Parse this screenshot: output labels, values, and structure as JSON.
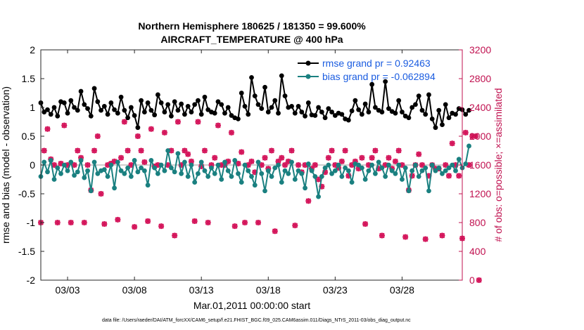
{
  "chart_data": {
    "type": "line",
    "title": "Northern Hemisphere 180625 / 181350 = 99.600%",
    "subtitle": "AIRCRAFT_TEMPERATURE @ 400 hPa",
    "xlabel": "Mar.01,2011 00:00:00 start",
    "ylabel_left": "rmse and bias (model - observation)",
    "ylabel_right": "# of obs: o=possible; ×=assimilated",
    "footer": "data file: /Users/raeder/DAI/ATM_forcXX/CAM6_setup/f.e21.FHIST_BGC.f09_025.CAM6assim.011/Diags_NTrS_2011-03/obs_diag_output.nc",
    "x_range": [
      1.0,
      32.5
    ],
    "ylim_left": [
      -2,
      2
    ],
    "ylim_right": [
      0,
      3200
    ],
    "x_ticks": [
      {
        "x": 3.0,
        "label": "03/03"
      },
      {
        "x": 8.0,
        "label": "03/08"
      },
      {
        "x": 13.0,
        "label": "03/13"
      },
      {
        "x": 18.0,
        "label": "03/18"
      },
      {
        "x": 23.0,
        "label": "03/23"
      },
      {
        "x": 28.0,
        "label": "03/28"
      }
    ],
    "y_ticks_left": [
      {
        "v": 2,
        "label": "2"
      },
      {
        "v": 1.5,
        "label": "1.5"
      },
      {
        "v": 1,
        "label": "1"
      },
      {
        "v": 0.5,
        "label": "0.5"
      },
      {
        "v": 0,
        "label": "0"
      },
      {
        "v": -0.5,
        "label": "-0.5"
      },
      {
        "v": -1,
        "label": "-1"
      },
      {
        "v": -1.5,
        "label": "-1.5"
      },
      {
        "v": -2,
        "label": "-2"
      }
    ],
    "y_ticks_right": [
      {
        "v": 3200,
        "label": "3200"
      },
      {
        "v": 2800,
        "label": "2800"
      },
      {
        "v": 2400,
        "label": "2400"
      },
      {
        "v": 2000,
        "label": "2000"
      },
      {
        "v": 1600,
        "label": "1600"
      },
      {
        "v": 1200,
        "label": "1200"
      },
      {
        "v": 800,
        "label": "800"
      },
      {
        "v": 400,
        "label": "400"
      },
      {
        "v": 0,
        "label": "0"
      }
    ],
    "x_start": 1.0,
    "x_step": 0.25,
    "series": [
      {
        "name": "rmse grand pr = 0.92463",
        "axis": "left",
        "color": "#000000",
        "style": "line-dots",
        "values": [
          1.08,
          0.92,
          0.96,
          0.88,
          1.0,
          0.85,
          1.1,
          1.08,
          0.9,
          1.12,
          1.0,
          0.95,
          1.28,
          1.05,
          0.98,
          0.85,
          1.33,
          1.1,
          0.95,
          1.02,
          0.88,
          1.08,
          0.96,
          0.9,
          1.18,
          0.95,
          0.82,
          1.0,
          0.86,
          0.65,
          1.12,
          0.92,
          1.08,
          0.95,
          0.87,
          1.22,
          1.08,
          0.92,
          1.05,
          0.85,
          1.1,
          0.95,
          1.06,
          0.88,
          1.02,
          0.92,
          1.05,
          1.12,
          0.88,
          1.18,
          0.96,
          0.92,
          0.9,
          1.1,
          1.05,
          0.9,
          1.0,
          0.86,
          0.82,
          0.8,
          1.25,
          1.02,
          0.88,
          1.52,
          1.2,
          1.05,
          0.98,
          1.35,
          0.92,
          1.0,
          1.12,
          0.9,
          1.55,
          1.2,
          1.0,
          1.02,
          0.9,
          1.02,
          0.92,
          0.85,
          1.08,
          0.87,
          0.86,
          1.0,
          0.92,
          0.82,
          0.98,
          0.92,
          0.86,
          0.9,
          0.88,
          0.8,
          0.78,
          0.94,
          1.12,
          0.96,
          0.88,
          1.06,
          0.92,
          1.4,
          1.0,
          0.95,
          0.92,
          1.45,
          0.98,
          0.93,
          0.9,
          1.12,
          0.92,
          0.85,
          0.82,
          1.0,
          1.05,
          1.2,
          0.95,
          0.88,
          1.22,
          0.8,
          0.65,
          0.95,
          0.7,
          1.05,
          0.82,
          0.9,
          0.88,
          0.98,
          0.96,
          0.88,
          0.95
        ]
      },
      {
        "name": "bias grand pr = -0.062894",
        "axis": "left",
        "color": "#1a8080",
        "style": "line-dots",
        "values": [
          -0.2,
          0.05,
          -0.12,
          0.08,
          -0.25,
          -0.05,
          -0.15,
          0.0,
          -0.1,
          0.05,
          -0.18,
          -0.12,
          0.08,
          -0.22,
          -0.1,
          -0.45,
          0.05,
          -0.15,
          -0.1,
          -0.08,
          -0.2,
          0.0,
          -0.4,
          0.05,
          -0.1,
          -0.15,
          -0.05,
          -0.2,
          0.08,
          -0.12,
          -0.05,
          -0.1,
          -0.35,
          0.08,
          -0.05,
          -0.15,
          0.0,
          -0.1,
          0.25,
          -0.05,
          -0.12,
          0.2,
          -0.15,
          0.05,
          -0.2,
          0.0,
          -0.3,
          -0.15,
          0.05,
          -0.1,
          -0.2,
          -0.05,
          -0.15,
          0.0,
          -0.25,
          0.05,
          -0.1,
          -0.2,
          0.08,
          -0.15,
          -0.3,
          0.0,
          -0.1,
          -0.2,
          -0.35,
          0.05,
          -0.15,
          -0.45,
          -0.1,
          -0.2,
          -0.05,
          0.0,
          -0.3,
          -0.1,
          -0.15,
          0.05,
          -0.25,
          -0.1,
          -0.15,
          -0.4,
          0.02,
          -0.1,
          -0.2,
          -0.55,
          -0.2,
          -0.05,
          0.0,
          -0.15,
          -0.1,
          0.0,
          -0.2,
          -0.05,
          -0.1,
          -0.3,
          0.02,
          0.0,
          -0.05,
          -0.25,
          -0.1,
          0.0,
          -0.15,
          0.05,
          -0.05,
          -0.2,
          0.0,
          -0.1,
          -0.15,
          0.0,
          -0.25,
          -0.05,
          -0.45,
          -0.1,
          0.0,
          -0.2,
          -0.1,
          -0.05,
          -0.45,
          0.0,
          -0.1,
          -0.05,
          -0.15,
          -0.1,
          -0.05,
          0.0,
          -0.1,
          0.1,
          -0.05,
          0.02,
          0.33
        ]
      },
      {
        "name": "possible obs",
        "axis": "right",
        "color": "#d4145a",
        "style": "markers",
        "values": [
          800,
          1800,
          2100,
          1680,
          1600,
          800,
          1620,
          2150,
          1600,
          800,
          1600,
          1800,
          1700,
          800,
          1600,
          1250,
          1800,
          2000,
          1200,
          780,
          1600,
          1620,
          1650,
          840,
          1700,
          2200,
          1800,
          1600,
          740,
          2000,
          1800,
          1640,
          820,
          2100,
          1580,
          1600,
          750,
          2050,
          1600,
          1800,
          620,
          2200,
          1600,
          1800,
          1750,
          1650,
          820,
          2200,
          1580,
          1800,
          800,
          1600,
          1700,
          2150,
          1600,
          1600,
          1650,
          2050,
          750,
          1620,
          1780,
          800,
          1600,
          1650,
          1500,
          800,
          1600,
          1700,
          1550,
          1800,
          680,
          1650,
          1700,
          1600,
          1650,
          1800,
          760,
          1600,
          1500,
          1600,
          1100,
          1550,
          1600,
          1400,
          1300,
          1500,
          1700,
          1800,
          1600,
          1560,
          1650,
          1800,
          1450,
          1600,
          1650,
          1550,
          1700,
          780,
          1600,
          1700,
          1800,
          1550,
          620,
          1600,
          1700,
          1550,
          1650,
          1800,
          1600,
          600,
          1250,
          1450,
          1600,
          1750,
          1600,
          570,
          1450,
          1600,
          1550,
          1550,
          620,
          1600,
          1450,
          1900,
          1600,
          1450,
          580,
          2050,
          1600,
          2000,
          2000,
          0
        ]
      }
    ],
    "legend": [
      {
        "label": "rmse grand pr = 0.92463",
        "color": "#000000"
      },
      {
        "label": "bias grand pr = -0.062894",
        "color": "#1a8080"
      }
    ],
    "legend_text_color": "#1a5ce0",
    "right_axis_color": "#c0104f",
    "zero_line_color": "#bfbfbf"
  }
}
